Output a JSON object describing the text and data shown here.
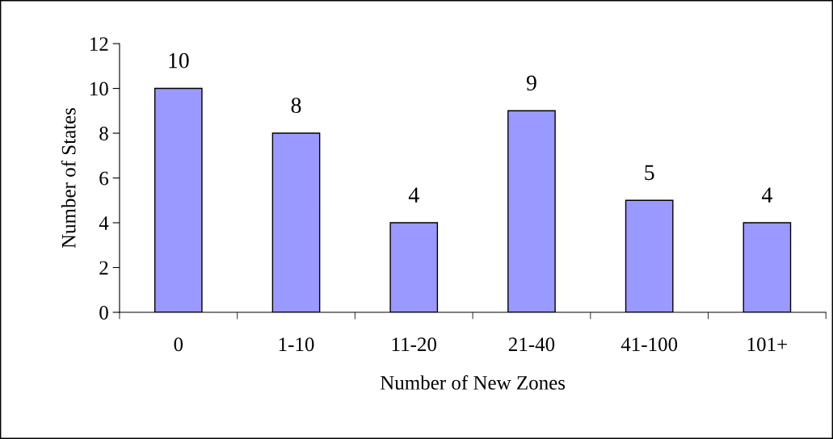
{
  "chart_data": {
    "type": "bar",
    "xlabel": "Number of New Zones",
    "ylabel": "Number of States",
    "categories": [
      "0",
      "1-10",
      "11-20",
      "21-40",
      "41-100",
      "101+"
    ],
    "values": [
      10,
      8,
      4,
      9,
      5,
      4
    ],
    "color": "#9999ff",
    "ylim": [
      0,
      12
    ],
    "yticks": [
      0,
      2,
      4,
      6,
      8,
      10,
      12
    ],
    "grid": false,
    "data_labels": true
  }
}
